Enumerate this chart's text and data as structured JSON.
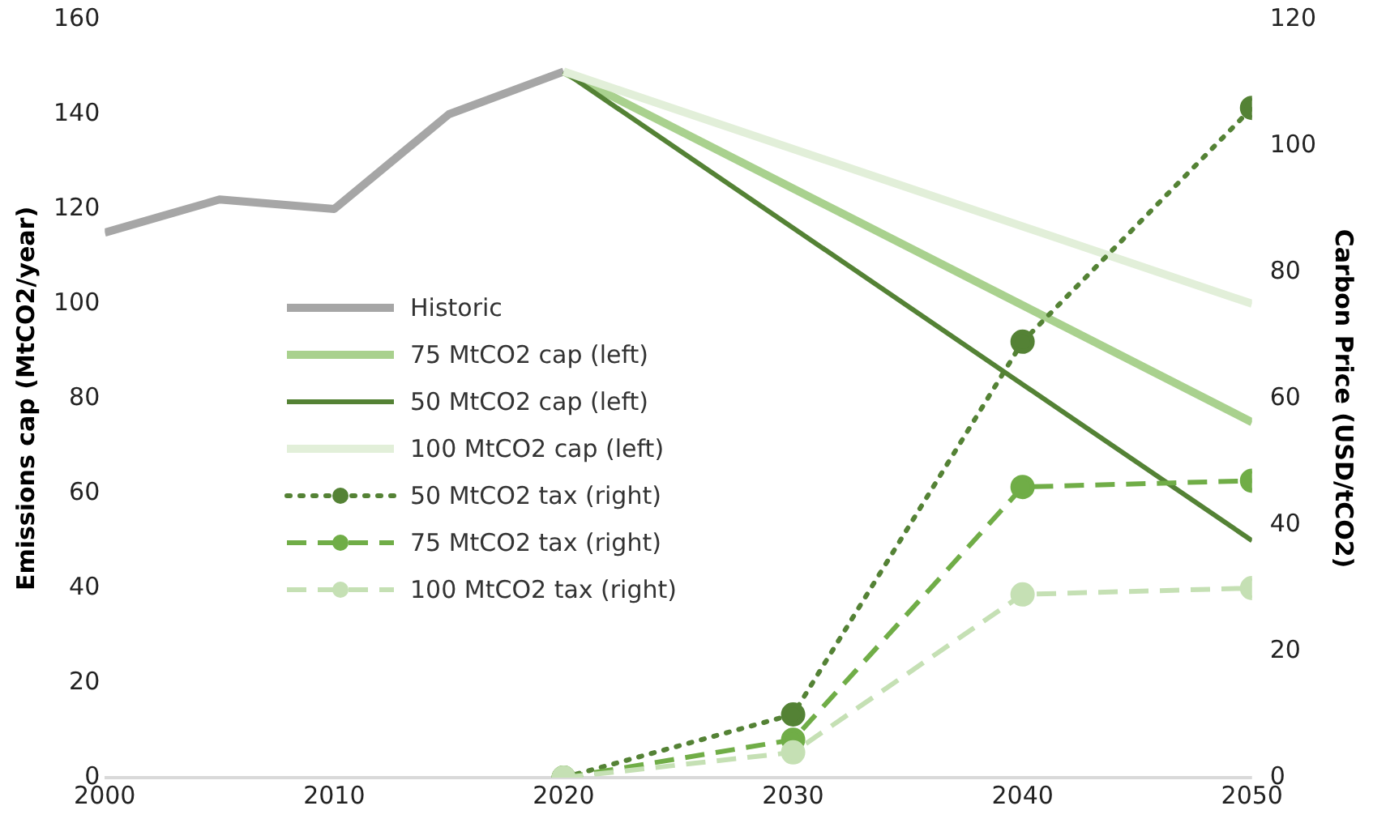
{
  "chart_data": {
    "type": "line",
    "xlim": [
      2000,
      2050
    ],
    "xticks": [
      2000,
      2010,
      2020,
      2030,
      2040,
      2050
    ],
    "ylabel": "Emissions cap (MtCO2/year)",
    "y2label": "Carbon Price (USD/tCO2)",
    "ylim": [
      0,
      160
    ],
    "yticks": [
      0,
      20,
      40,
      60,
      80,
      100,
      120,
      140,
      160
    ],
    "y2lim": [
      0,
      120
    ],
    "y2ticks": [
      0,
      20,
      40,
      60,
      80,
      100,
      120
    ],
    "grid": false,
    "legend": "left",
    "series": [
      {
        "name": "Historic",
        "color": "#a6a6a6",
        "x": [
          2000,
          2005,
          2010,
          2015,
          2020
        ],
        "values": [
          115,
          122,
          120,
          140,
          149
        ],
        "line_style": "solid",
        "marker": "none"
      },
      {
        "name": "75 MtCO2 cap (left)",
        "color": "#a9d18e",
        "x": [
          2020,
          2050
        ],
        "values": [
          149,
          75
        ],
        "line_style": "solid",
        "marker": "none"
      },
      {
        "name": "50 MtCO2 cap (left)",
        "color": "#548235",
        "x": [
          2020,
          2050
        ],
        "values": [
          149,
          50
        ],
        "line_style": "solid",
        "marker": "none"
      },
      {
        "name": "100 MtCO2 cap (left)",
        "color": "#e2efd9",
        "x": [
          2020,
          2050
        ],
        "values": [
          149,
          100
        ],
        "line_style": "solid",
        "marker": "none"
      },
      {
        "name": "50 MtCO2 tax (right)",
        "color": "#548235",
        "axis": "y2",
        "x": [
          2020,
          2030,
          2040,
          2050
        ],
        "values": [
          0,
          10,
          69,
          106
        ],
        "line_style": "dotted",
        "marker": "circle"
      },
      {
        "name": "75 MtCO2 tax (right)",
        "color": "#70ad47",
        "axis": "y2",
        "x": [
          2020,
          2030,
          2040,
          2050
        ],
        "values": [
          0,
          6,
          46,
          47
        ],
        "line_style": "dashed",
        "marker": "circle"
      },
      {
        "name": "100 MtCO2 tax (right)",
        "color": "#c5e0b4",
        "axis": "y2",
        "x": [
          2020,
          2030,
          2040,
          2050
        ],
        "values": [
          0,
          4,
          29,
          30
        ],
        "line_style": "dashed",
        "marker": "circle"
      }
    ]
  }
}
